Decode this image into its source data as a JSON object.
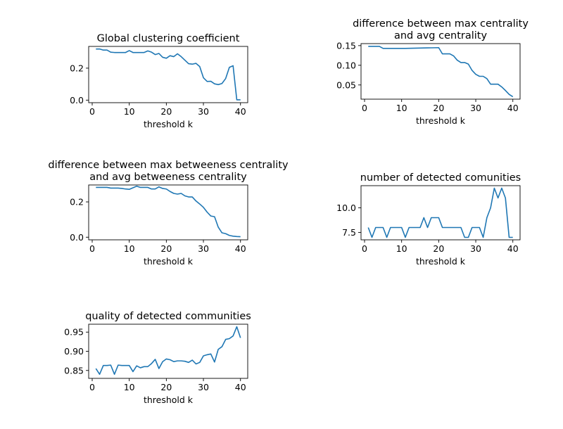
{
  "chart_data": [
    {
      "type": "line",
      "title": [
        "Global clustering coefficient"
      ],
      "xlabel": "threshold k",
      "ylabel": "",
      "xlim": [
        -0.95,
        41.95
      ],
      "ylim": [
        -0.016,
        0.336
      ],
      "xticks": [
        0,
        10,
        20,
        30,
        40
      ],
      "yticks": [
        0.0,
        0.2
      ],
      "ytick_labels": [
        "0.0",
        "0.2"
      ],
      "color": "#1f77b4",
      "grid": false,
      "x": [
        1,
        2,
        3,
        4,
        5,
        6,
        7,
        8,
        9,
        10,
        11,
        12,
        13,
        14,
        15,
        16,
        17,
        18,
        19,
        20,
        21,
        22,
        23,
        24,
        25,
        26,
        27,
        28,
        29,
        30,
        31,
        32,
        33,
        34,
        35,
        36,
        37,
        38,
        39,
        40
      ],
      "values": [
        0.32,
        0.32,
        0.313,
        0.313,
        0.3,
        0.298,
        0.298,
        0.298,
        0.298,
        0.31,
        0.298,
        0.298,
        0.298,
        0.298,
        0.308,
        0.3,
        0.285,
        0.292,
        0.268,
        0.262,
        0.278,
        0.272,
        0.29,
        0.272,
        0.25,
        0.228,
        0.225,
        0.23,
        0.21,
        0.14,
        0.117,
        0.118,
        0.102,
        0.097,
        0.104,
        0.135,
        0.205,
        0.215,
        0.002,
        0.002
      ]
    },
    {
      "type": "line",
      "title": [
        "difference between max centrality",
        "and avg centrality"
      ],
      "xlabel": "threshold k",
      "ylabel": "",
      "xlim": [
        -0.95,
        41.95
      ],
      "ylim": [
        0.0139,
        0.1551
      ],
      "xticks": [
        0,
        10,
        20,
        30,
        40
      ],
      "yticks": [
        0.05,
        0.1,
        0.15
      ],
      "ytick_labels": [
        "0.05",
        "0.10",
        "0.15"
      ],
      "color": "#1f77b4",
      "grid": false,
      "x": [
        1,
        2,
        3,
        4,
        5,
        6,
        7,
        8,
        9,
        10,
        11,
        12,
        13,
        14,
        15,
        16,
        17,
        18,
        19,
        20,
        21,
        22,
        23,
        24,
        25,
        26,
        27,
        28,
        29,
        30,
        31,
        32,
        33,
        34,
        35,
        36,
        37,
        38,
        39,
        40
      ],
      "values": [
        0.148,
        0.148,
        0.148,
        0.148,
        0.143,
        0.143,
        0.143,
        0.143,
        0.143,
        0.143,
        0.143,
        0.1432,
        0.1434,
        0.1436,
        0.1438,
        0.144,
        0.1442,
        0.1444,
        0.1446,
        0.1448,
        0.129,
        0.129,
        0.129,
        0.124,
        0.113,
        0.107,
        0.107,
        0.103,
        0.087,
        0.077,
        0.072,
        0.072,
        0.066,
        0.052,
        0.052,
        0.052,
        0.045,
        0.036,
        0.026,
        0.02
      ]
    },
    {
      "type": "line",
      "title": [
        "difference between max betweeness centrality",
        "and avg betweeness centrality"
      ],
      "xlabel": "threshold k",
      "ylabel": "",
      "xlim": [
        -0.95,
        41.95
      ],
      "ylim": [
        -0.0148,
        0.2958
      ],
      "xticks": [
        0,
        10,
        20,
        30,
        40
      ],
      "yticks": [
        0.0,
        0.2
      ],
      "ytick_labels": [
        "0.0",
        "0.2"
      ],
      "color": "#1f77b4",
      "grid": false,
      "x": [
        1,
        2,
        3,
        4,
        5,
        6,
        7,
        8,
        9,
        10,
        11,
        12,
        13,
        14,
        15,
        16,
        17,
        18,
        19,
        20,
        21,
        22,
        23,
        24,
        25,
        26,
        27,
        28,
        29,
        30,
        31,
        32,
        33,
        34,
        35,
        36,
        37,
        38,
        39,
        40
      ],
      "values": [
        0.282,
        0.282,
        0.282,
        0.282,
        0.278,
        0.278,
        0.278,
        0.276,
        0.273,
        0.271,
        0.28,
        0.289,
        0.282,
        0.282,
        0.282,
        0.273,
        0.273,
        0.285,
        0.276,
        0.273,
        0.259,
        0.248,
        0.244,
        0.248,
        0.234,
        0.228,
        0.228,
        0.205,
        0.188,
        0.169,
        0.142,
        0.12,
        0.116,
        0.057,
        0.025,
        0.02,
        0.01,
        0.006,
        0.004,
        0.003
      ]
    },
    {
      "type": "line",
      "title": [
        "number of detected comunities"
      ],
      "xlabel": "threshold k",
      "ylabel": "",
      "xlim": [
        -0.95,
        41.95
      ],
      "ylim": [
        6.75,
        12.25
      ],
      "xticks": [
        0,
        10,
        20,
        30,
        40
      ],
      "yticks": [
        7.5,
        10.0
      ],
      "ytick_labels": [
        "7.5",
        "10.0"
      ],
      "color": "#1f77b4",
      "grid": false,
      "x": [
        1,
        2,
        3,
        4,
        5,
        6,
        7,
        8,
        9,
        10,
        11,
        12,
        13,
        14,
        15,
        16,
        17,
        18,
        19,
        20,
        21,
        22,
        23,
        24,
        25,
        26,
        27,
        28,
        29,
        30,
        31,
        32,
        33,
        34,
        35,
        36,
        37,
        38,
        39,
        40
      ],
      "values": [
        8,
        7,
        8,
        8,
        8,
        7,
        8,
        8,
        8,
        8,
        7,
        8,
        8,
        8,
        8,
        9,
        8,
        9,
        9,
        9,
        8,
        8,
        8,
        8,
        8,
        8,
        7,
        7,
        8,
        8,
        8,
        7,
        9,
        10,
        12,
        11,
        12,
        11,
        7,
        7
      ]
    },
    {
      "type": "line",
      "title": [
        "quality of detected communities"
      ],
      "xlabel": "threshold k",
      "ylabel": "",
      "xlim": [
        -0.95,
        41.95
      ],
      "ylim": [
        0.8294,
        0.9706
      ],
      "xticks": [
        0,
        10,
        20,
        30,
        40
      ],
      "yticks": [
        0.85,
        0.9,
        0.95
      ],
      "ytick_labels": [
        "0.85",
        "0.90",
        "0.95"
      ],
      "color": "#1f77b4",
      "grid": false,
      "x": [
        1,
        2,
        3,
        4,
        5,
        6,
        7,
        8,
        9,
        10,
        11,
        12,
        13,
        14,
        15,
        16,
        17,
        18,
        19,
        20,
        21,
        22,
        23,
        24,
        25,
        26,
        27,
        28,
        29,
        30,
        31,
        32,
        33,
        34,
        35,
        36,
        37,
        38,
        39,
        40
      ],
      "values": [
        0.855,
        0.84,
        0.863,
        0.863,
        0.864,
        0.84,
        0.864,
        0.863,
        0.863,
        0.863,
        0.847,
        0.862,
        0.857,
        0.86,
        0.86,
        0.868,
        0.879,
        0.855,
        0.873,
        0.88,
        0.878,
        0.873,
        0.875,
        0.875,
        0.874,
        0.871,
        0.877,
        0.867,
        0.871,
        0.888,
        0.891,
        0.893,
        0.872,
        0.905,
        0.912,
        0.931,
        0.933,
        0.94,
        0.964,
        0.935
      ]
    }
  ]
}
